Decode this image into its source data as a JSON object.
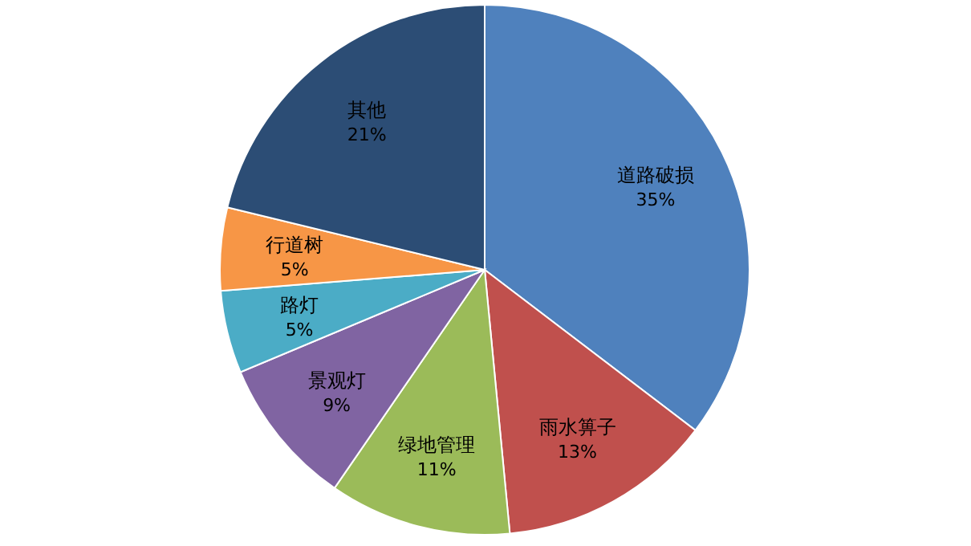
{
  "chart_data": {
    "type": "pie",
    "categories": [
      "道路破损",
      "雨水箅子",
      "绿地管理",
      "景观灯",
      "路灯",
      "行道树",
      "其他"
    ],
    "values": [
      35,
      13,
      11,
      9,
      5,
      5,
      21
    ],
    "value_labels": [
      "35%",
      "13%",
      "11%",
      "9%",
      "5%",
      "5%",
      "21%"
    ],
    "colors": [
      "#4f81bd",
      "#c0504d",
      "#9bbb59",
      "#8064a2",
      "#4bacc6",
      "#f79646",
      "#2c4d75"
    ],
    "legend": false
  }
}
